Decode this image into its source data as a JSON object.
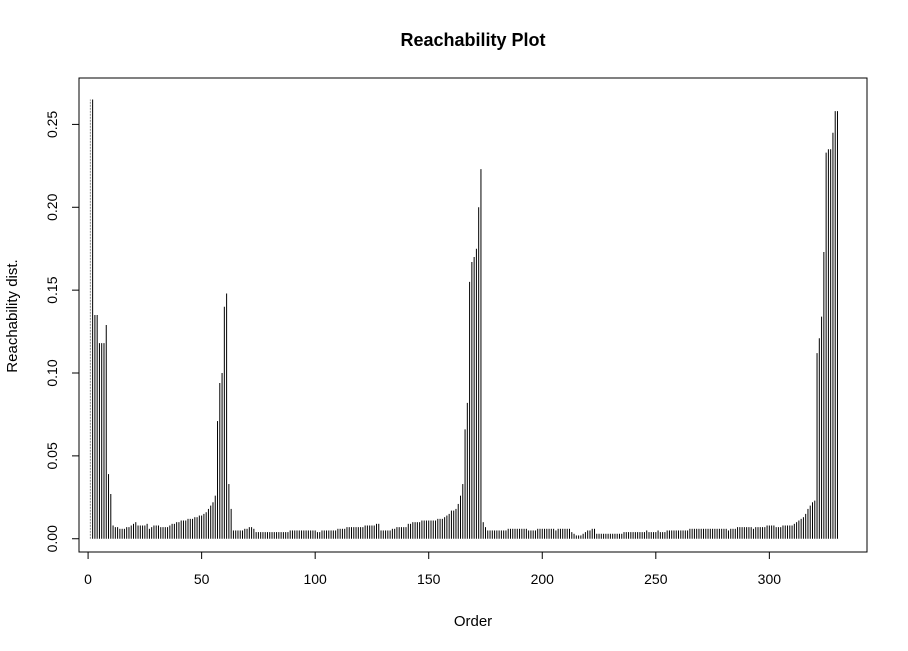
{
  "chart_data": {
    "type": "bar",
    "title": "Reachability Plot",
    "xlabel": "Order",
    "ylabel": "Reachability dist.",
    "xlim": [
      -4,
      343
    ],
    "ylim": [
      -0.008,
      0.278
    ],
    "xticks": [
      0,
      50,
      100,
      150,
      200,
      250,
      300
    ],
    "yticks": [
      0.0,
      0.05,
      0.1,
      0.15,
      0.2,
      0.25
    ],
    "ytick_labels": [
      "0.00",
      "0.05",
      "0.10",
      "0.15",
      "0.20",
      "0.25"
    ],
    "grid": false,
    "legend": "none",
    "bar_color": "#000000",
    "undefined_color": "#888888",
    "undefined_points": [
      1
    ],
    "x": {
      "start": 1,
      "end": 330
    },
    "values": [
      0.265,
      0.265,
      0.135,
      0.135,
      0.118,
      0.118,
      0.118,
      0.129,
      0.039,
      0.027,
      0.008,
      0.007,
      0.007,
      0.006,
      0.006,
      0.006,
      0.007,
      0.007,
      0.008,
      0.009,
      0.01,
      0.008,
      0.008,
      0.008,
      0.008,
      0.009,
      0.006,
      0.007,
      0.008,
      0.008,
      0.008,
      0.007,
      0.007,
      0.007,
      0.007,
      0.008,
      0.009,
      0.009,
      0.01,
      0.01,
      0.011,
      0.011,
      0.011,
      0.012,
      0.012,
      0.012,
      0.013,
      0.013,
      0.014,
      0.014,
      0.015,
      0.016,
      0.018,
      0.02,
      0.022,
      0.026,
      0.071,
      0.094,
      0.1,
      0.14,
      0.148,
      0.033,
      0.018,
      0.005,
      0.005,
      0.005,
      0.005,
      0.005,
      0.006,
      0.006,
      0.007,
      0.007,
      0.006,
      0.004,
      0.004,
      0.004,
      0.004,
      0.004,
      0.004,
      0.004,
      0.004,
      0.004,
      0.004,
      0.004,
      0.004,
      0.004,
      0.004,
      0.004,
      0.005,
      0.005,
      0.005,
      0.005,
      0.005,
      0.005,
      0.005,
      0.005,
      0.005,
      0.005,
      0.005,
      0.005,
      0.004,
      0.004,
      0.005,
      0.005,
      0.005,
      0.005,
      0.005,
      0.005,
      0.005,
      0.006,
      0.006,
      0.006,
      0.006,
      0.007,
      0.007,
      0.007,
      0.007,
      0.007,
      0.007,
      0.007,
      0.007,
      0.008,
      0.008,
      0.008,
      0.008,
      0.008,
      0.009,
      0.009,
      0.005,
      0.005,
      0.005,
      0.005,
      0.005,
      0.006,
      0.006,
      0.007,
      0.007,
      0.007,
      0.007,
      0.007,
      0.009,
      0.009,
      0.01,
      0.01,
      0.01,
      0.01,
      0.011,
      0.011,
      0.011,
      0.011,
      0.011,
      0.011,
      0.011,
      0.012,
      0.012,
      0.012,
      0.013,
      0.014,
      0.015,
      0.017,
      0.017,
      0.018,
      0.021,
      0.026,
      0.033,
      0.066,
      0.082,
      0.155,
      0.167,
      0.17,
      0.175,
      0.2,
      0.223,
      0.01,
      0.007,
      0.005,
      0.005,
      0.005,
      0.005,
      0.005,
      0.005,
      0.005,
      0.005,
      0.005,
      0.006,
      0.006,
      0.006,
      0.006,
      0.006,
      0.006,
      0.006,
      0.006,
      0.006,
      0.005,
      0.005,
      0.005,
      0.005,
      0.006,
      0.006,
      0.006,
      0.006,
      0.006,
      0.006,
      0.006,
      0.006,
      0.005,
      0.006,
      0.006,
      0.006,
      0.006,
      0.006,
      0.006,
      0.004,
      0.003,
      0.002,
      0.002,
      0.002,
      0.003,
      0.004,
      0.005,
      0.005,
      0.006,
      0.006,
      0.003,
      0.003,
      0.003,
      0.003,
      0.003,
      0.003,
      0.003,
      0.003,
      0.003,
      0.003,
      0.003,
      0.003,
      0.004,
      0.004,
      0.004,
      0.004,
      0.004,
      0.004,
      0.004,
      0.004,
      0.004,
      0.004,
      0.005,
      0.004,
      0.004,
      0.004,
      0.004,
      0.005,
      0.004,
      0.004,
      0.004,
      0.005,
      0.005,
      0.005,
      0.005,
      0.005,
      0.005,
      0.005,
      0.005,
      0.005,
      0.005,
      0.006,
      0.006,
      0.006,
      0.006,
      0.006,
      0.006,
      0.006,
      0.006,
      0.006,
      0.006,
      0.006,
      0.006,
      0.006,
      0.006,
      0.006,
      0.006,
      0.006,
      0.005,
      0.006,
      0.006,
      0.006,
      0.007,
      0.007,
      0.007,
      0.007,
      0.007,
      0.007,
      0.007,
      0.006,
      0.007,
      0.007,
      0.007,
      0.007,
      0.007,
      0.008,
      0.008,
      0.008,
      0.008,
      0.007,
      0.007,
      0.007,
      0.008,
      0.008,
      0.008,
      0.008,
      0.008,
      0.009,
      0.01,
      0.011,
      0.012,
      0.013,
      0.015,
      0.018,
      0.02,
      0.022,
      0.023,
      0.112,
      0.121,
      0.134,
      0.173,
      0.233,
      0.235,
      0.235,
      0.245,
      0.258,
      0.258
    ]
  }
}
